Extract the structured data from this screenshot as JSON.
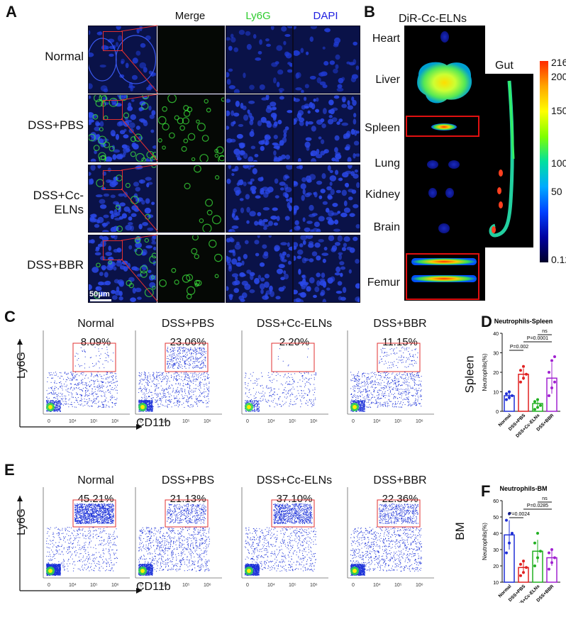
{
  "panels": {
    "A": "A",
    "B": "B",
    "C": "C",
    "D": "D",
    "E": "E",
    "F": "F"
  },
  "panelA": {
    "columns": [
      "Merge",
      "Ly6G",
      "DAPI"
    ],
    "rows": [
      "Normal",
      "DSS+PBS",
      "DSS+Cc-ELNs",
      "DSS+BBR"
    ],
    "scale_bar": "50μm",
    "colors": {
      "merge": "#ffffff",
      "ly6g": "#2ecc2e",
      "dapi": "#2020e0"
    }
  },
  "panelB": {
    "title": "DiR-Cc-ELNs",
    "organs": [
      "Heart",
      "Liver",
      "Spleen",
      "Lung",
      "Kidney",
      "Brain",
      "Femur"
    ],
    "gut_label": "Gut",
    "colorbar_ticks": [
      "216",
      "200",
      "150",
      "100",
      "50",
      "0.12"
    ]
  },
  "panelC": {
    "groups": [
      "Normal",
      "DSS+PBS",
      "DSS+Cc-ELNs",
      "DSS+BBR"
    ],
    "percents": [
      "8.09%",
      "23.06%",
      "2.20%",
      "11.15%"
    ],
    "ylabel": "Ly6G",
    "xlabel": "CD11b",
    "side_label": "Spleen",
    "ticks": [
      "0",
      "10⁴",
      "10⁵",
      "10⁶"
    ]
  },
  "panelE": {
    "groups": [
      "Normal",
      "DSS+PBS",
      "DSS+Cc-ELNs",
      "DSS+BBR"
    ],
    "percents": [
      "45.21%",
      "21.13%",
      "37.10%",
      "22.36%"
    ],
    "ylabel": "Ly6G",
    "xlabel": "CD11b",
    "side_label": "BM",
    "ticks": [
      "0",
      "10⁴",
      "10⁵",
      "10⁶"
    ]
  },
  "chart_data": [
    {
      "type": "bar",
      "title": "Neutrophils-Spleen",
      "ylabel": "Neutrophils(%)",
      "categories": [
        "Normal",
        "DSS+PBS",
        "DSS+Cc-ELNs",
        "DSS+BBR"
      ],
      "values": [
        8,
        19,
        4,
        17
      ],
      "errors": [
        2,
        3,
        2,
        8
      ],
      "points": [
        [
          6,
          7,
          8,
          9,
          10
        ],
        [
          15,
          17,
          19,
          21,
          23
        ],
        [
          1,
          2,
          3,
          5,
          6
        ],
        [
          8,
          12,
          15,
          20,
          26,
          28
        ]
      ],
      "colors": [
        "#1f2fd6",
        "#e02020",
        "#22b022",
        "#a020d0"
      ],
      "ylim": [
        0,
        40
      ],
      "yticks": [
        0,
        10,
        20,
        30,
        40
      ],
      "annotations": [
        "P=0.002",
        "P=0.0001",
        "ns"
      ]
    },
    {
      "type": "bar",
      "title": "Neutrophils-BM",
      "ylabel": "Neutrophils(%)",
      "categories": [
        "Normal",
        "DSS+PBS",
        "DSS+Cc-ELNs",
        "DSS+BBR"
      ],
      "values": [
        39,
        19,
        29,
        25
      ],
      "errors": [
        9,
        4,
        7,
        5
      ],
      "points": [
        [
          28,
          34,
          40,
          48,
          52
        ],
        [
          14,
          16,
          19,
          21,
          23
        ],
        [
          20,
          25,
          29,
          34,
          40
        ],
        [
          18,
          22,
          25,
          28,
          30
        ]
      ],
      "colors": [
        "#1f2fd6",
        "#e02020",
        "#22b022",
        "#a020d0"
      ],
      "ylim": [
        10,
        60
      ],
      "yticks": [
        10,
        20,
        30,
        40,
        50,
        60
      ],
      "annotations": [
        "P=0.0024",
        "P=0.0285",
        "ns"
      ]
    }
  ]
}
